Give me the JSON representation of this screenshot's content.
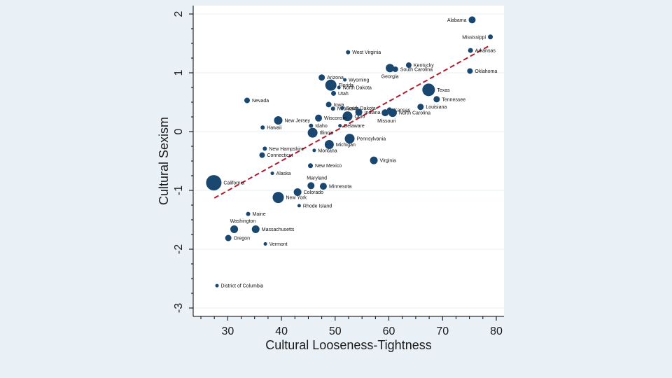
{
  "colors": {
    "background": "#e9f1f6",
    "plot_background": "#ffffff",
    "gridline": "#eaf2f3",
    "marker": "#1a476f",
    "fit_line": "#b01c2e",
    "axis": "#000000"
  },
  "chart_data": {
    "type": "scatter",
    "title": "",
    "xlabel": "Cultural Looseness-Tightness",
    "ylabel": "Cultural Sexism",
    "xlim": [
      25,
      80
    ],
    "ylim": [
      -3,
      2
    ],
    "xticks": [
      30,
      40,
      50,
      60,
      70,
      80
    ],
    "yticks": [
      -3,
      -2,
      -1,
      0,
      1,
      2
    ],
    "xtick_labels": [
      "30",
      "40",
      "50",
      "60",
      "70",
      "80"
    ],
    "ytick_labels": [
      "-3",
      "-2",
      "-1",
      "0",
      "1",
      "2"
    ],
    "grid": true,
    "marker_size_encoding": "weighted (population)",
    "fit_line": {
      "style": "dashed",
      "x": [
        27.5,
        78.5
      ],
      "y": [
        -1.13,
        1.45
      ]
    },
    "points": [
      {
        "label": "Alabama",
        "x": 75.5,
        "y": 1.9,
        "size": 5,
        "label_side": "left"
      },
      {
        "label": "Mississippi",
        "x": 78.9,
        "y": 1.61,
        "size": 3.5,
        "label_side": "left"
      },
      {
        "label": "Arkansas",
        "x": 75.2,
        "y": 1.38,
        "size": 3.5,
        "label_side": "right"
      },
      {
        "label": "Oklahoma",
        "x": 75.1,
        "y": 1.03,
        "size": 4,
        "label_side": "right"
      },
      {
        "label": "West Virginia",
        "x": 52.4,
        "y": 1.35,
        "size": 3,
        "label_side": "right"
      },
      {
        "label": "Kentucky",
        "x": 63.7,
        "y": 1.13,
        "size": 4,
        "label_side": "right"
      },
      {
        "label": "South Carolina",
        "x": 61.2,
        "y": 1.06,
        "size": 4,
        "label_side": "right"
      },
      {
        "label": "Georgia",
        "x": 60.2,
        "y": 1.08,
        "size": 6,
        "label_side": "below"
      },
      {
        "label": "Texas",
        "x": 67.4,
        "y": 0.71,
        "size": 9,
        "label_side": "right"
      },
      {
        "label": "Tennessee",
        "x": 68.9,
        "y": 0.55,
        "size": 4.5,
        "label_side": "right"
      },
      {
        "label": "Louisiana",
        "x": 65.9,
        "y": 0.42,
        "size": 4.5,
        "label_side": "right"
      },
      {
        "label": "Kansas",
        "x": 60.1,
        "y": 0.37,
        "size": 3.5,
        "label_side": "right"
      },
      {
        "label": "North Carolina",
        "x": 60.7,
        "y": 0.32,
        "size": 6,
        "label_side": "right"
      },
      {
        "label": "Missouri",
        "x": 59.3,
        "y": 0.32,
        "size": 5,
        "label_side": "below-left"
      },
      {
        "label": "Arizona",
        "x": 47.5,
        "y": 0.92,
        "size": 4.5,
        "label_side": "right"
      },
      {
        "label": "Wyoming",
        "x": 51.8,
        "y": 0.88,
        "size": 2.5,
        "label_side": "right"
      },
      {
        "label": "Florida",
        "x": 49.2,
        "y": 0.79,
        "size": 8,
        "label_side": "right"
      },
      {
        "label": "North Dakota",
        "x": 50.7,
        "y": 0.75,
        "size": 2.5,
        "label_side": "right"
      },
      {
        "label": "Utah",
        "x": 49.7,
        "y": 0.65,
        "size": 3.5,
        "label_side": "right"
      },
      {
        "label": "Iowa",
        "x": 48.8,
        "y": 0.46,
        "size": 4,
        "label_side": "right"
      },
      {
        "label": "Nebraska",
        "x": 49.6,
        "y": 0.39,
        "size": 3,
        "label_side": "right"
      },
      {
        "label": "South Dakota",
        "x": 51.3,
        "y": 0.4,
        "size": 2.5,
        "label_side": "right"
      },
      {
        "label": "Ohio",
        "x": 52.3,
        "y": 0.26,
        "size": 7,
        "label_side": "right"
      },
      {
        "label": "Indiana",
        "x": 54.4,
        "y": 0.33,
        "size": 5,
        "label_side": "right"
      },
      {
        "label": "Nevada",
        "x": 33.6,
        "y": 0.53,
        "size": 4,
        "label_side": "right"
      },
      {
        "label": "New Jersey",
        "x": 39.4,
        "y": 0.19,
        "size": 6,
        "label_side": "right"
      },
      {
        "label": "Hawaii",
        "x": 36.5,
        "y": 0.07,
        "size": 3,
        "label_side": "right"
      },
      {
        "label": "Wisconsin",
        "x": 46.9,
        "y": 0.23,
        "size": 5,
        "label_side": "right"
      },
      {
        "label": "Idaho",
        "x": 45.5,
        "y": 0.1,
        "size": 3,
        "label_side": "right"
      },
      {
        "label": "Delaware",
        "x": 50.9,
        "y": 0.1,
        "size": 2.5,
        "label_side": "right"
      },
      {
        "label": "Illinois",
        "x": 45.8,
        "y": -0.02,
        "size": 7,
        "label_side": "right"
      },
      {
        "label": "Pennsylvania",
        "x": 52.7,
        "y": -0.12,
        "size": 7,
        "label_side": "right"
      },
      {
        "label": "Michigan",
        "x": 48.9,
        "y": -0.22,
        "size": 6.5,
        "label_side": "right"
      },
      {
        "label": "New Hampshire",
        "x": 36.9,
        "y": -0.29,
        "size": 3,
        "label_side": "right"
      },
      {
        "label": "Montana",
        "x": 46.1,
        "y": -0.32,
        "size": 2.5,
        "label_side": "right"
      },
      {
        "label": "Connecticut",
        "x": 36.4,
        "y": -0.4,
        "size": 4,
        "label_side": "right"
      },
      {
        "label": "Virginia",
        "x": 57.2,
        "y": -0.49,
        "size": 5.5,
        "label_side": "right"
      },
      {
        "label": "New Mexico",
        "x": 45.4,
        "y": -0.58,
        "size": 3.5,
        "label_side": "right"
      },
      {
        "label": "Alaska",
        "x": 38.3,
        "y": -0.71,
        "size": 2.5,
        "label_side": "right"
      },
      {
        "label": "California",
        "x": 27.4,
        "y": -0.87,
        "size": 11,
        "label_side": "right"
      },
      {
        "label": "Maryland",
        "x": 45.5,
        "y": -0.92,
        "size": 5,
        "label_side": "above-right"
      },
      {
        "label": "Minnesota",
        "x": 47.8,
        "y": -0.93,
        "size": 5,
        "label_side": "right"
      },
      {
        "label": "Colorado",
        "x": 43,
        "y": -1.03,
        "size": 5.5,
        "label_side": "right"
      },
      {
        "label": "New York",
        "x": 39.4,
        "y": -1.12,
        "size": 8,
        "label_side": "right"
      },
      {
        "label": "Rhode Island",
        "x": 43.3,
        "y": -1.26,
        "size": 2.5,
        "label_side": "right"
      },
      {
        "label": "Maine",
        "x": 33.8,
        "y": -1.4,
        "size": 3,
        "label_side": "right"
      },
      {
        "label": "Washington",
        "x": 31.2,
        "y": -1.66,
        "size": 5.5,
        "label_side": "above-right"
      },
      {
        "label": "Massachusetts",
        "x": 35.2,
        "y": -1.66,
        "size": 5.5,
        "label_side": "right"
      },
      {
        "label": "Oregon",
        "x": 30.1,
        "y": -1.81,
        "size": 4.5,
        "label_side": "right"
      },
      {
        "label": "Vermont",
        "x": 37,
        "y": -1.91,
        "size": 2.5,
        "label_side": "right"
      },
      {
        "label": "District of Columbia",
        "x": 28,
        "y": -2.62,
        "size": 2.5,
        "label_side": "right"
      }
    ]
  }
}
